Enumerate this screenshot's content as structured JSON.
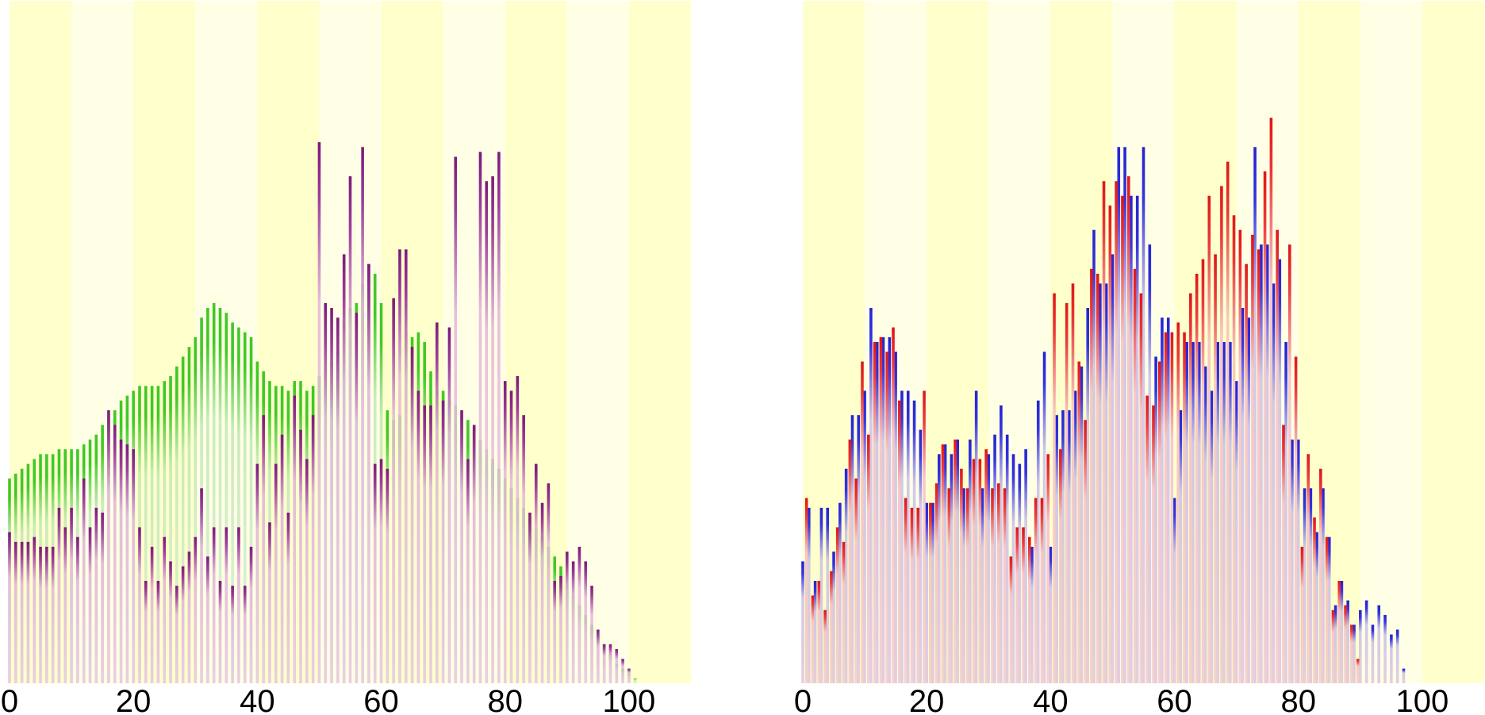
{
  "chart_data": [
    {
      "type": "bar",
      "xlim": [
        0,
        110
      ],
      "x_ticks": [
        0,
        20,
        40,
        60,
        80,
        100
      ],
      "x_tick_labels": [
        "0",
        "20",
        "40",
        "60",
        "80",
        "100"
      ],
      "ylim": [
        0,
        140
      ],
      "grid": false,
      "stripe_colors": [
        "#ffffcc",
        "#ffffe6"
      ],
      "series": [
        {
          "color": "#41c826",
          "x_start": 0,
          "values": [
            42,
            43,
            44,
            45,
            46,
            47,
            47,
            47,
            48,
            48,
            48,
            48,
            49,
            50,
            51,
            53,
            55,
            56,
            58,
            59,
            60,
            61,
            61,
            61,
            61,
            62,
            63,
            65,
            67,
            69,
            71,
            75,
            77,
            78,
            77,
            76,
            74,
            73,
            72,
            71,
            66,
            64,
            62,
            61,
            61,
            60,
            62,
            62,
            60,
            61,
            63,
            65,
            66,
            68,
            74,
            77,
            78,
            82,
            86,
            84,
            78,
            56,
            54,
            55,
            72,
            71,
            72,
            70,
            64,
            60,
            60,
            58,
            57,
            55,
            54,
            52,
            50,
            48,
            46,
            44,
            42,
            40,
            38,
            36,
            34,
            32,
            30,
            28,
            26,
            24,
            20,
            18,
            16,
            14,
            12,
            10,
            8,
            6,
            4,
            3,
            2,
            1
          ]
        },
        {
          "color": "#7b1a7b",
          "x_start": 0,
          "values": [
            31,
            29,
            29,
            29,
            30,
            28,
            28,
            28,
            36,
            32,
            36,
            30,
            42,
            32,
            36,
            35,
            56,
            53,
            50,
            49,
            48,
            32,
            21,
            28,
            21,
            30,
            25,
            20,
            24,
            27,
            30,
            40,
            26,
            32,
            21,
            32,
            20,
            32,
            20,
            28,
            45,
            55,
            33,
            45,
            51,
            35,
            59,
            52,
            46,
            55,
            111,
            78,
            77,
            75,
            88,
            104,
            76,
            110,
            86,
            45,
            46,
            44,
            79,
            89,
            89,
            69,
            60,
            57,
            57,
            74,
            58,
            73,
            108,
            56,
            46,
            53,
            109,
            103,
            104,
            109,
            62,
            60,
            63,
            55,
            35,
            45,
            37,
            41,
            21,
            22,
            27,
            25,
            28,
            25,
            20,
            11,
            8,
            8,
            7,
            5,
            3
          ]
        }
      ]
    },
    {
      "type": "bar",
      "xlim": [
        0,
        110
      ],
      "x_ticks": [
        0,
        20,
        40,
        60,
        80,
        100
      ],
      "x_tick_labels": [
        "0",
        "20",
        "40",
        "60",
        "80",
        "100"
      ],
      "ylim": [
        0,
        140
      ],
      "grid": false,
      "stripe_colors": [
        "#ffffcc",
        "#ffffe6"
      ],
      "series": [
        {
          "color": "#2323d4",
          "x_start": 0,
          "values": [
            25,
            36,
            21,
            36,
            36,
            27,
            37,
            44,
            55,
            55,
            60,
            77,
            70,
            71,
            71,
            68,
            60,
            60,
            58,
            52,
            37,
            37,
            47,
            49,
            47,
            50,
            40,
            50,
            60,
            40,
            47,
            51,
            57,
            51,
            47,
            45,
            48,
            28,
            58,
            68,
            28,
            55,
            56,
            56,
            60,
            65,
            77,
            93,
            82,
            82,
            88,
            110,
            110,
            100,
            100,
            110,
            90,
            67,
            75,
            75,
            38,
            56,
            70,
            70,
            70,
            65,
            60,
            70,
            70,
            70,
            62,
            77,
            75,
            110,
            90,
            90,
            82,
            87,
            70,
            50,
            50,
            40,
            40,
            31,
            40,
            30,
            16,
            21,
            17,
            12,
            15,
            17,
            12,
            16,
            14,
            10,
            11,
            3
          ]
        },
        {
          "color": "#e01515",
          "x_start": 0.6,
          "values": [
            38,
            18,
            21,
            15,
            23,
            32,
            29,
            50,
            42,
            66,
            51,
            70,
            71,
            68,
            73,
            58,
            38,
            36,
            36,
            60,
            37,
            41,
            49,
            40,
            50,
            44,
            40,
            46,
            46,
            48,
            40,
            41,
            40,
            26,
            32,
            32,
            30,
            38,
            38,
            47,
            80,
            48,
            78,
            82,
            66,
            54,
            85,
            84,
            103,
            98,
            103,
            100,
            104,
            85,
            80,
            59,
            57,
            66,
            72,
            72,
            74,
            72,
            80,
            84,
            87,
            100,
            88,
            102,
            107,
            96,
            93,
            86,
            92,
            89,
            105,
            116,
            93,
            53,
            90,
            67,
            28,
            47,
            34,
            44,
            30,
            15,
            21,
            16,
            12,
            5
          ]
        }
      ]
    }
  ]
}
